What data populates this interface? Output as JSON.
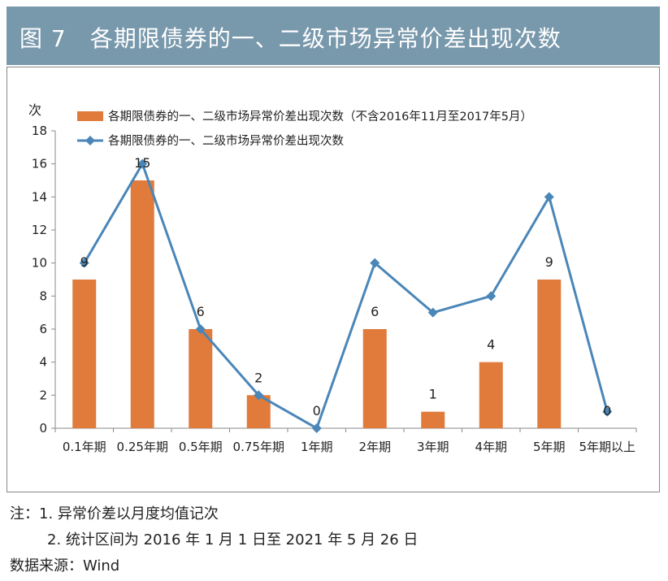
{
  "header": {
    "figure_title": "图 7　各期限债券的一、二级市场异常价差出现次数"
  },
  "chart_data": {
    "type": "bar",
    "ylabel": "次",
    "ylim": [
      0,
      18
    ],
    "yticks": [
      0,
      2,
      4,
      6,
      8,
      10,
      12,
      14,
      16,
      18
    ],
    "categories": [
      "0.1年期",
      "0.25年期",
      "0.5年期",
      "0.75年期",
      "1年期",
      "2年期",
      "3年期",
      "4年期",
      "5年期",
      "5年期以上"
    ],
    "series": [
      {
        "name": "各期限债券的一、二级市场异常价差出现次数（不含2016年11月至2017年5月）",
        "type": "bar",
        "color": "#e07b3c",
        "values": [
          9,
          15,
          6,
          2,
          0,
          6,
          1,
          4,
          9,
          0
        ],
        "labels": [
          "9",
          "15",
          "6",
          "2",
          "0",
          "6",
          "1",
          "4",
          "9",
          "0"
        ]
      },
      {
        "name": "各期限债券的一、二级市场异常价差出现次数",
        "type": "line",
        "marker": "diamond",
        "color": "#4a86b8",
        "values": [
          10,
          16,
          6,
          2,
          0,
          10,
          7,
          8,
          14,
          1
        ]
      }
    ],
    "legend_position": "top"
  },
  "notes": {
    "line1": "注：1. 异常价差以月度均值记次",
    "line2": "2. 统计区间为 2016 年 1 月 1 日至 2021 年 5 月 26 日",
    "source": "数据来源：Wind"
  }
}
